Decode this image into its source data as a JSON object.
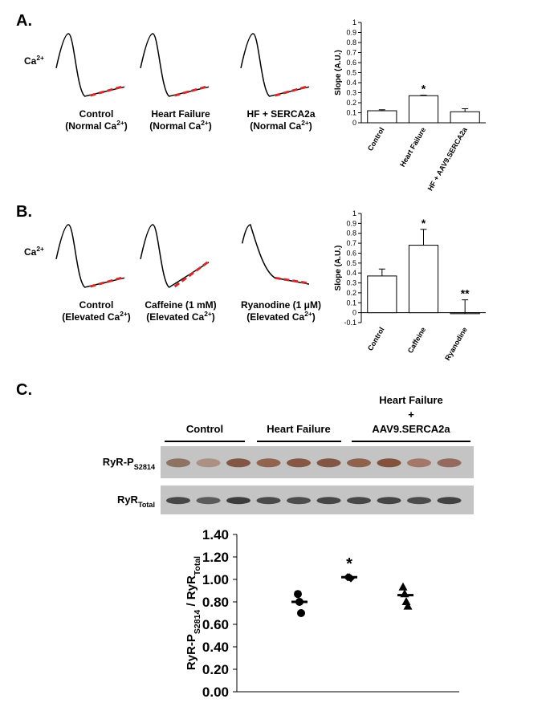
{
  "panels": [
    {
      "label": "A.",
      "ca_label": [
        "Ca",
        "2+"
      ],
      "traces": [
        {
          "name": "Control",
          "condition": [
            "(Normal Ca",
            "2+",
            ")"
          ]
        },
        {
          "name": "Heart Failure",
          "condition": [
            "(Normal Ca",
            "2+",
            ")"
          ]
        },
        {
          "name": "HF + SERCA2a",
          "condition": [
            "(Normal Ca",
            "2+",
            ")"
          ]
        }
      ]
    },
    {
      "label": "B.",
      "ca_label": [
        "Ca",
        "2+"
      ],
      "traces": [
        {
          "name": "Control",
          "condition": [
            "(Elevated Ca",
            "2+",
            ")"
          ]
        },
        {
          "name": "Caffeine (1 mM)",
          "condition": [
            "(Elevated Ca",
            "2+",
            ")"
          ]
        },
        {
          "name": "Ryanodine (1 μM)",
          "condition": [
            "(Elevated Ca",
            "2+",
            ")"
          ]
        }
      ]
    },
    {
      "label": "C.",
      "groups": [
        [
          "Control"
        ],
        [
          "Heart Failure"
        ],
        [
          "Heart Failure",
          "+",
          "AAV9.SERCA2a"
        ]
      ],
      "rows": [
        [
          "RyR-P",
          "S2814"
        ],
        [
          "RyR",
          "Total"
        ]
      ]
    }
  ],
  "chart_data": [
    {
      "type": "bar",
      "y_label": "Slope (A.U.)",
      "categories": [
        "Control",
        "Heart Failure",
        "HF + AAV9.SERCA2a"
      ],
      "values": [
        0.12,
        0.27,
        0.11
      ],
      "errors": [
        0.01,
        0.005,
        0.03
      ],
      "significance": [
        null,
        "*",
        null
      ],
      "color": "#ffffff",
      "ylim": [
        0,
        1
      ],
      "yticks": [
        0,
        0.1,
        0.2,
        0.3,
        0.4,
        0.5,
        0.6,
        0.7,
        0.8,
        0.9,
        1
      ]
    },
    {
      "type": "bar",
      "y_label": "Slope (A.U.)",
      "categories": [
        "Control",
        "Caffeine",
        "Ryanodine"
      ],
      "values": [
        0.37,
        0.68,
        -0.01
      ],
      "errors": [
        0.07,
        0.16,
        0.14
      ],
      "significance": [
        null,
        "*",
        "**"
      ],
      "color": "#ffffff",
      "ylim": [
        -0.1,
        1
      ],
      "yticks": [
        -0.1,
        0,
        0.1,
        0.2,
        0.3,
        0.4,
        0.5,
        0.6,
        0.7,
        0.8,
        0.9,
        1
      ]
    },
    {
      "type": "dot",
      "y_label": [
        "RyR-P",
        "S2814",
        " / RyR",
        "Total"
      ],
      "series": [
        {
          "marker": "circle",
          "color": "#000000",
          "values": [
            0.87,
            0.8,
            0.7
          ],
          "mean": 0.8
        },
        {
          "marker": "diamond",
          "color": "#000000",
          "values": [
            1.02,
            1.02,
            1.01
          ],
          "mean": 1.02,
          "annotation": "*"
        },
        {
          "marker": "triangle",
          "color": "#000000",
          "values": [
            0.93,
            0.87,
            0.8,
            0.76
          ],
          "mean": 0.86
        }
      ],
      "ylim": [
        0,
        1.4
      ],
      "yticks": [
        {
          "value": 0,
          "label": "0.00"
        },
        {
          "value": 0.2,
          "label": "0.20"
        },
        {
          "value": 0.4,
          "label": "0.40"
        },
        {
          "value": 0.6,
          "label": "0.60"
        },
        {
          "value": 0.8,
          "label": "0.80"
        },
        {
          "value": 1,
          "label": "1.00"
        },
        {
          "value": 1.2,
          "label": "1.20"
        },
        {
          "value": 1.4,
          "label": "1.40"
        }
      ]
    }
  ]
}
